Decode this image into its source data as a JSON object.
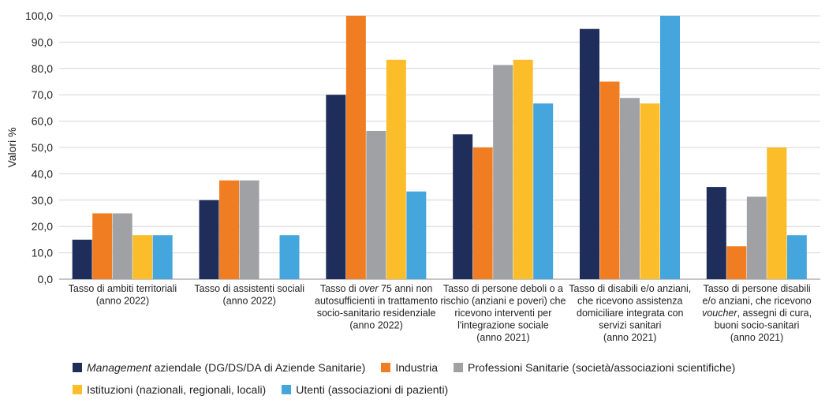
{
  "chart_data": {
    "type": "bar",
    "ylabel": "Valori %",
    "xlabel": "",
    "ylim": [
      0,
      100
    ],
    "y_ticks": [
      "0,0",
      "10,0",
      "20,0",
      "30,0",
      "40,0",
      "50,0",
      "60,0",
      "70,0",
      "80,0",
      "90,0",
      "100,0"
    ],
    "grid": true,
    "legend_position": "bottom",
    "categories": [
      {
        "lines": [
          [
            {
              "t": "Tasso di ambiti territoriali"
            }
          ],
          [
            {
              "t": "(anno 2022)"
            }
          ]
        ]
      },
      {
        "lines": [
          [
            {
              "t": "Tasso di assistenti sociali"
            }
          ],
          [
            {
              "t": "(anno 2022)"
            }
          ]
        ]
      },
      {
        "lines": [
          [
            {
              "t": "Tasso di "
            },
            {
              "t": "over",
              "i": true
            },
            {
              "t": " 75 anni non"
            }
          ],
          [
            {
              "t": "autosufficienti in trattamento"
            }
          ],
          [
            {
              "t": "socio-sanitario residenziale"
            }
          ],
          [
            {
              "t": "(anno 2022)"
            }
          ]
        ]
      },
      {
        "lines": [
          [
            {
              "t": "Tasso di persone deboli o a"
            }
          ],
          [
            {
              "t": "rischio (anziani e poveri) che"
            }
          ],
          [
            {
              "t": "ricevono interventi per"
            }
          ],
          [
            {
              "t": "l'integrazione sociale"
            }
          ],
          [
            {
              "t": "(anno 2021)"
            }
          ]
        ]
      },
      {
        "lines": [
          [
            {
              "t": "Tasso di disabili e/o anziani,"
            }
          ],
          [
            {
              "t": "che ricevono assistenza"
            }
          ],
          [
            {
              "t": "domiciliare integrata con"
            }
          ],
          [
            {
              "t": "servizi sanitari"
            }
          ],
          [
            {
              "t": "(anno 2021)"
            }
          ]
        ]
      },
      {
        "lines": [
          [
            {
              "t": "Tasso di persone disabili"
            }
          ],
          [
            {
              "t": "e/o anziani, che ricevono"
            }
          ],
          [
            {
              "t": "voucher",
              "i": true
            },
            {
              "t": ", assegni di cura,"
            }
          ],
          [
            {
              "t": "buoni socio-sanitari"
            }
          ],
          [
            {
              "t": "(anno 2021)"
            }
          ]
        ]
      }
    ],
    "series": [
      {
        "name_italic": "Management",
        "name_rest": " aziendale (DG/DS/DA di Aziende Sanitarie)",
        "color": "#1f2d5a",
        "values": [
          15,
          30,
          70,
          55,
          95,
          35
        ]
      },
      {
        "name": "Industria",
        "color": "#f07d22",
        "values": [
          25,
          37.5,
          100,
          50,
          75,
          12.5
        ]
      },
      {
        "name": "Professioni Sanitarie (società/associazioni scientifiche)",
        "color": "#a0a1a5",
        "values": [
          25,
          37.5,
          56.3,
          81.3,
          68.8,
          31.3
        ]
      },
      {
        "name": "Istituzioni (nazionali, regionali, locali)",
        "color": "#fbbd2a",
        "values": [
          16.7,
          0,
          83.3,
          83.3,
          66.7,
          50
        ]
      },
      {
        "name": "Utenti (associazioni di pazienti)",
        "color": "#45a6dd",
        "values": [
          16.7,
          16.7,
          33.3,
          66.7,
          100,
          16.7
        ]
      }
    ]
  }
}
